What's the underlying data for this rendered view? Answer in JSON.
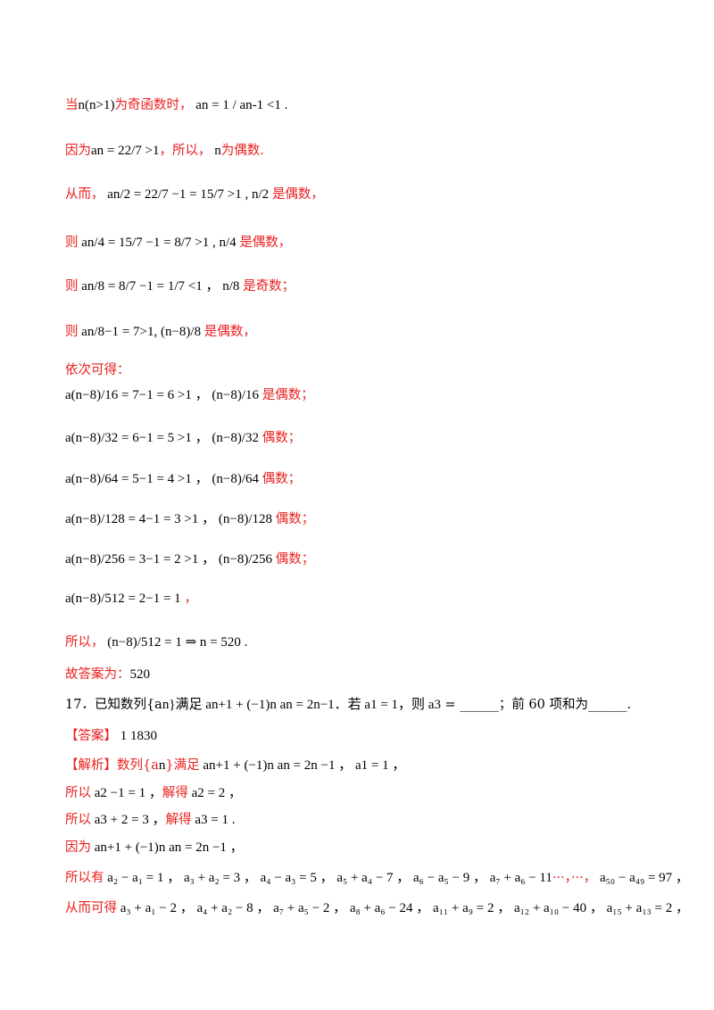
{
  "lines": [
    {
      "segments": [
        {
          "t": "当",
          "c": "red"
        },
        {
          "t": "n(n>1)",
          "c": "math"
        },
        {
          "t": "为奇函数时，",
          "c": "red"
        },
        {
          "t": "  a",
          "c": "math"
        },
        {
          "t": "n",
          "c": "math"
        },
        {
          "t": " = 1 / a",
          "c": "math"
        },
        {
          "t": "n-1",
          "c": "math"
        },
        {
          "t": " <1 .",
          "c": "math"
        }
      ]
    },
    {
      "segments": [
        {
          "t": "因为",
          "c": "red"
        },
        {
          "t": "a",
          "c": "math"
        },
        {
          "t": "n",
          "c": "math"
        },
        {
          "t": " = 22/7 >1",
          "c": "math"
        },
        {
          "t": "，所以，",
          "c": "red"
        },
        {
          "t": "  n",
          "c": "math"
        },
        {
          "t": "为偶数.",
          "c": "red"
        }
      ]
    },
    {
      "segments": [
        {
          "t": "从而，",
          "c": "red"
        },
        {
          "t": " a",
          "c": "math"
        },
        {
          "t": "n/2",
          "c": "math"
        },
        {
          "t": " = 22/7 −1 = 15/7 >1 , n/2 ",
          "c": "math"
        },
        {
          "t": "是偶数，",
          "c": "red"
        }
      ]
    },
    {
      "segments": [
        {
          "t": "则",
          "c": "red"
        },
        {
          "t": " a",
          "c": "math"
        },
        {
          "t": "n/4",
          "c": "math"
        },
        {
          "t": " = 15/7 −1 = 8/7 >1 , n/4 ",
          "c": "math"
        },
        {
          "t": "是偶数，",
          "c": "red"
        }
      ]
    },
    {
      "segments": [
        {
          "t": "则",
          "c": "red"
        },
        {
          "t": " a",
          "c": "math"
        },
        {
          "t": "n/8",
          "c": "math"
        },
        {
          "t": " = 8/7 −1 = 1/7 <1 ，  n/8 ",
          "c": "math"
        },
        {
          "t": "是奇数；",
          "c": "red"
        }
      ]
    },
    {
      "segments": [
        {
          "t": "则",
          "c": "red"
        },
        {
          "t": " a",
          "c": "math"
        },
        {
          "t": "n/8−1",
          "c": "math"
        },
        {
          "t": " = 7>1, (n−8)/8 ",
          "c": "math"
        },
        {
          "t": "是偶数，",
          "c": "red"
        }
      ]
    },
    {
      "segments": [
        {
          "t": "依次可得：",
          "c": "red"
        }
      ]
    },
    {
      "segments": [
        {
          "t": "a",
          "c": "math"
        },
        {
          "t": "(n−8)/16",
          "c": "math"
        },
        {
          "t": " = 7−1 = 6 >1 ，  (n−8)/16 ",
          "c": "math"
        },
        {
          "t": "是偶数；",
          "c": "red"
        }
      ]
    },
    {
      "segments": [
        {
          "t": "a",
          "c": "math"
        },
        {
          "t": "(n−8)/32",
          "c": "math"
        },
        {
          "t": " = 6−1 = 5 >1 ，  (n−8)/32 ",
          "c": "math"
        },
        {
          "t": "偶数；",
          "c": "red"
        }
      ]
    },
    {
      "segments": [
        {
          "t": "a",
          "c": "math"
        },
        {
          "t": "(n−8)/64",
          "c": "math"
        },
        {
          "t": " = 5−1 = 4 >1 ，  (n−8)/64 ",
          "c": "math"
        },
        {
          "t": "偶数；",
          "c": "red"
        }
      ]
    },
    {
      "segments": [
        {
          "t": "a",
          "c": "math"
        },
        {
          "t": "(n−8)/128",
          "c": "math"
        },
        {
          "t": " = 4−1 = 3 >1 ，  (n−8)/128 ",
          "c": "math"
        },
        {
          "t": "偶数；",
          "c": "red"
        }
      ]
    },
    {
      "segments": [
        {
          "t": "a",
          "c": "math"
        },
        {
          "t": "(n−8)/256",
          "c": "math"
        },
        {
          "t": " = 3−1 = 2 >1 ，  (n−8)/256 ",
          "c": "math"
        },
        {
          "t": "偶数；",
          "c": "red"
        }
      ]
    },
    {
      "segments": [
        {
          "t": "a",
          "c": "math"
        },
        {
          "t": "(n−8)/512",
          "c": "math"
        },
        {
          "t": " = 2−1 = 1 ",
          "c": "math"
        },
        {
          "t": "，",
          "c": "red"
        }
      ]
    },
    {
      "segments": [
        {
          "t": "所以，",
          "c": "red"
        },
        {
          "t": "  (n−8)/512 = 1 ⇒ n = 520 .",
          "c": "math"
        }
      ]
    },
    {
      "segments": [
        {
          "t": "故答案为：",
          "c": "red"
        },
        {
          "t": "520",
          "c": "math"
        }
      ]
    },
    {
      "segments": [
        {
          "t": "17．已知数列{a",
          "c": ""
        },
        {
          "t": "n",
          "c": "math"
        },
        {
          "t": "}满足 a",
          "c": "math"
        },
        {
          "t": "n+1",
          "c": "math"
        },
        {
          "t": " + (−1)",
          "c": "math"
        },
        {
          "t": "n",
          "c": "math"
        },
        {
          "t": " a",
          "c": "math"
        },
        {
          "t": "n",
          "c": "math"
        },
        {
          "t": " = 2n−1．若 a",
          "c": "math"
        },
        {
          "t": "1",
          "c": "math"
        },
        {
          "t": " = 1，则 a",
          "c": "math"
        },
        {
          "t": "3",
          "c": "math"
        },
        {
          "t": " = ______；前 60 项和为______.",
          "c": ""
        }
      ]
    },
    {
      "segments": [
        {
          "t": "【答案】",
          "c": "red"
        },
        {
          "t": "        1          1830",
          "c": "math"
        }
      ]
    },
    {
      "segments": [
        {
          "t": "【解析】数列{a",
          "c": "red"
        },
        {
          "t": "n",
          "c": "math"
        },
        {
          "t": "}满足",
          "c": "red"
        },
        {
          "t": " a",
          "c": "math"
        },
        {
          "t": "n+1",
          "c": "math"
        },
        {
          "t": " + (−1)",
          "c": "math"
        },
        {
          "t": "n",
          "c": "math"
        },
        {
          "t": " a",
          "c": "math"
        },
        {
          "t": "n",
          "c": "math"
        },
        {
          "t": " = 2n −1 ，  a",
          "c": "math"
        },
        {
          "t": "1",
          "c": "math"
        },
        {
          "t": " = 1 ，",
          "c": "math"
        }
      ]
    },
    {
      "segments": [
        {
          "t": "所以",
          "c": "red"
        },
        {
          "t": " a",
          "c": "math"
        },
        {
          "t": "2",
          "c": "math"
        },
        {
          "t": " −1 = 1 ，",
          "c": "math"
        },
        {
          "t": "解得",
          "c": "red"
        },
        {
          "t": " a",
          "c": "math"
        },
        {
          "t": "2",
          "c": "math"
        },
        {
          "t": " = 2 ，",
          "c": "math"
        }
      ]
    },
    {
      "segments": [
        {
          "t": "所以",
          "c": "red"
        },
        {
          "t": " a",
          "c": "math"
        },
        {
          "t": "3",
          "c": "math"
        },
        {
          "t": " + 2 = 3 ，",
          "c": "math"
        },
        {
          "t": "解得",
          "c": "red"
        },
        {
          "t": " a",
          "c": "math"
        },
        {
          "t": "3",
          "c": "math"
        },
        {
          "t": " = 1 .",
          "c": "math"
        }
      ]
    },
    {
      "segments": [
        {
          "t": "因为",
          "c": "red"
        },
        {
          "t": " a",
          "c": "math"
        },
        {
          "t": "n+1",
          "c": "math"
        },
        {
          "t": " + (−1)",
          "c": "math"
        },
        {
          "t": "n",
          "c": "math"
        },
        {
          "t": " a",
          "c": "math"
        },
        {
          "t": "n",
          "c": "math"
        },
        {
          "t": " = 2n −1 ，",
          "c": "math"
        }
      ]
    },
    {
      "segments": [
        {
          "t": "所以有",
          "c": "red"
        },
        {
          "t": " a₂ − a₁ = 1 ，  a₃ + a₂ = 3 ，  a₄ − a₃ = 5 ，  a₅ + a₄ − 7 ，  a₆ − a₅ − 9 ，  a₇ + a₆ − 11",
          "c": "math"
        },
        {
          "t": "···，···，",
          "c": "red"
        },
        {
          "t": "  a₅₀ − a₄₉ = 97 ，",
          "c": "math"
        }
      ]
    },
    {
      "segments": [
        {
          "t": "从而可得",
          "c": "red"
        },
        {
          "t": " a₃ + a₁ − 2 ，  a₄ + a₂ − 8 ，  a₇ + a₅ − 2 ，  a₈ + a₆ − 24 ，  a₁₁ + a₉ = 2 ，  a₁₂ + a₁₀ − 40 ，  a₁₅ + a₁₃ = 2 ，",
          "c": "math"
        }
      ]
    }
  ]
}
